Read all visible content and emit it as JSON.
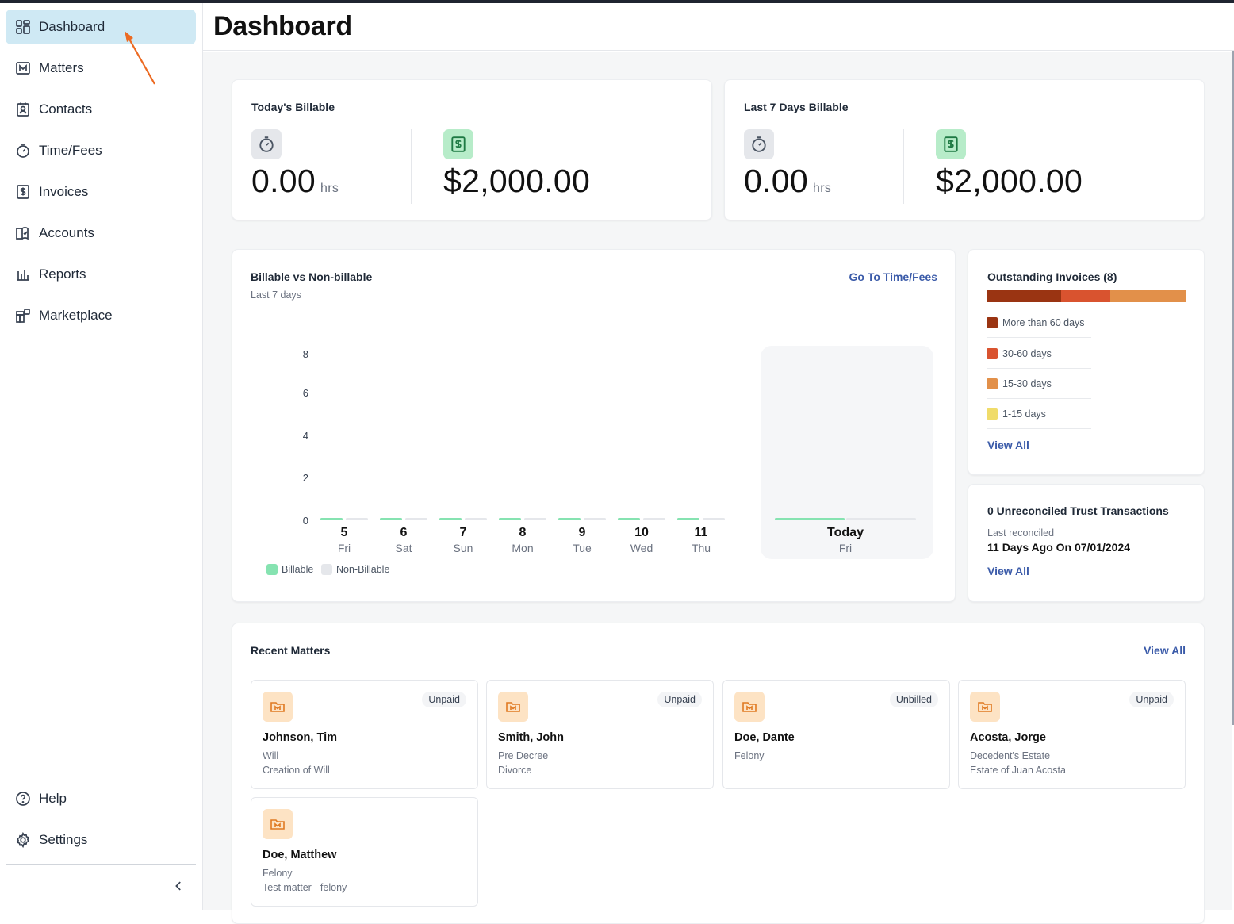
{
  "sidebar": {
    "items": [
      {
        "label": "Dashboard",
        "icon": "dashboard-icon",
        "active": true
      },
      {
        "label": "Matters",
        "icon": "matters-icon"
      },
      {
        "label": "Contacts",
        "icon": "contacts-icon"
      },
      {
        "label": "Time/Fees",
        "icon": "stopwatch-icon"
      },
      {
        "label": "Invoices",
        "icon": "invoice-icon"
      },
      {
        "label": "Accounts",
        "icon": "accounts-icon"
      },
      {
        "label": "Reports",
        "icon": "reports-icon"
      },
      {
        "label": "Marketplace",
        "icon": "marketplace-icon"
      }
    ],
    "bottom": [
      {
        "label": "Help",
        "icon": "help-icon"
      },
      {
        "label": "Settings",
        "icon": "gear-icon"
      }
    ],
    "collapse_icon": "chevron-left-icon"
  },
  "header": {
    "title": "Dashboard"
  },
  "today": {
    "title": "Today's Billable",
    "hours": "0.00",
    "unit": "hrs",
    "amount": "$2,000.00"
  },
  "last7": {
    "title": "Last 7 Days Billable",
    "hours": "0.00",
    "unit": "hrs",
    "amount": "$2,000.00"
  },
  "billable_chart": {
    "title": "Billable vs Non-billable",
    "subtitle": "Last 7 days",
    "link": "Go To Time/Fees",
    "legend": [
      "Billable",
      "Non-Billable"
    ],
    "colors": {
      "billable": "#86e3b1",
      "non_billable": "#e5e7eb"
    }
  },
  "chart_data": {
    "type": "bar",
    "categories": [
      "5",
      "6",
      "7",
      "8",
      "9",
      "10",
      "11",
      "Today"
    ],
    "weekdays": [
      "Fri",
      "Sat",
      "Sun",
      "Mon",
      "Tue",
      "Wed",
      "Thu",
      "Fri"
    ],
    "series": [
      {
        "name": "Billable",
        "values": [
          0,
          0,
          0,
          0,
          0,
          0,
          0,
          0
        ]
      },
      {
        "name": "Non-Billable",
        "values": [
          0,
          0,
          0,
          0,
          0,
          0,
          0,
          0
        ]
      }
    ],
    "yticks": [
      "8",
      "6",
      "4",
      "2",
      "0"
    ],
    "ylim": [
      0,
      8
    ]
  },
  "outstanding": {
    "title": "Outstanding Invoices (8)",
    "segments": [
      {
        "label": "More than 60 days",
        "color": "#9a3412",
        "share": 0.37
      },
      {
        "label": "30-60 days",
        "color": "#d9532f",
        "share": 0.25
      },
      {
        "label": "15-30 days",
        "color": "#e2904a",
        "share": 0.38
      },
      {
        "label": "1-15 days",
        "color": "#f0dc6a",
        "share": 0
      }
    ],
    "link": "View All"
  },
  "trust": {
    "title": "0 Unreconciled Trust Transactions",
    "label": "Last reconciled",
    "value": "11 Days Ago On 07/01/2024",
    "link": "View All"
  },
  "recent": {
    "title": "Recent Matters",
    "link": "View All",
    "matters": [
      {
        "name": "Johnson, Tim",
        "badge": "Unpaid",
        "line1": "Will",
        "line2": "Creation of Will"
      },
      {
        "name": "Smith, John",
        "badge": "Unpaid",
        "line1": "Pre Decree",
        "line2": "Divorce"
      },
      {
        "name": "Doe, Dante",
        "badge": "Unbilled",
        "line1": "Felony",
        "line2": ""
      },
      {
        "name": "Acosta, Jorge",
        "badge": "Unpaid",
        "line1": "Decedent's Estate",
        "line2": "Estate of Juan Acosta"
      },
      {
        "name": "Doe, Matthew",
        "badge": "",
        "line1": "Felony",
        "line2": "Test matter - felony"
      }
    ]
  }
}
